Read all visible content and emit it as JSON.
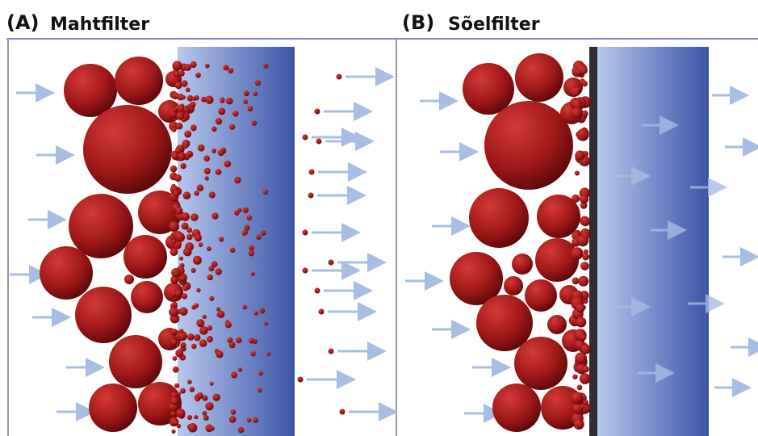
{
  "panels": [
    {
      "label": "(A)",
      "title": "Mahtfilter"
    },
    {
      "label": "(B)",
      "title": "Sõelfilter"
    }
  ]
}
